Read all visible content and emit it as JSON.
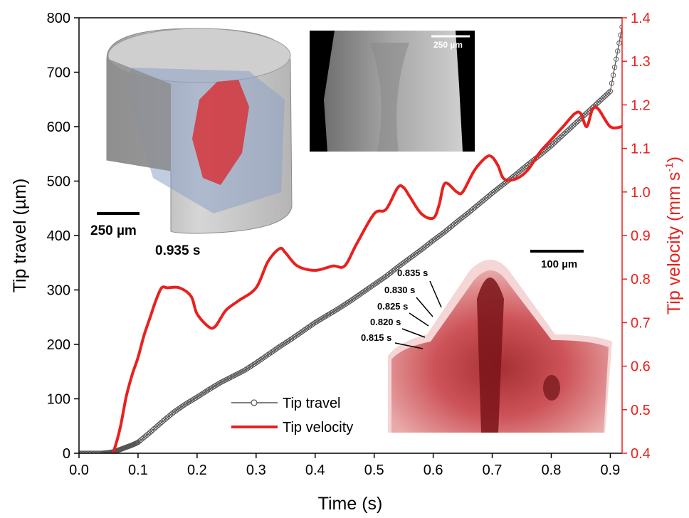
{
  "chart_data": {
    "type": "line",
    "xlabel": "Time (s)",
    "ylabel_left": "Tip travel (µm)",
    "ylabel_right_main": "Tip velocity (mm s",
    "ylabel_right_sup": "-1",
    "ylabel_right_tail": ")",
    "xlim": [
      0,
      0.92
    ],
    "ylim_left": [
      0,
      800
    ],
    "ylim_right": [
      0.4,
      1.4
    ],
    "x_ticks": [
      "0.0",
      "0.1",
      "0.2",
      "0.3",
      "0.4",
      "0.5",
      "0.6",
      "0.7",
      "0.8",
      "0.9"
    ],
    "y_left_ticks": [
      "0",
      "100",
      "200",
      "300",
      "400",
      "500",
      "600",
      "700",
      "800"
    ],
    "y_right_ticks": [
      "0.4",
      "0.5",
      "0.6",
      "0.7",
      "0.8",
      "0.9",
      "1.0",
      "1.1",
      "1.2",
      "1.3",
      "1.4"
    ],
    "legend_position": "bottom-center",
    "grid": false,
    "series": [
      {
        "name": "Tip travel",
        "axis": "left",
        "color": "#555555",
        "marker": "open-circle",
        "x": [
          0.0,
          0.02,
          0.04,
          0.05,
          0.06,
          0.07,
          0.08,
          0.09,
          0.1,
          0.12,
          0.14,
          0.16,
          0.18,
          0.2,
          0.22,
          0.24,
          0.26,
          0.28,
          0.3,
          0.32,
          0.34,
          0.36,
          0.38,
          0.4,
          0.42,
          0.44,
          0.46,
          0.48,
          0.5,
          0.52,
          0.54,
          0.56,
          0.58,
          0.6,
          0.62,
          0.64,
          0.66,
          0.68,
          0.7,
          0.72,
          0.74,
          0.76,
          0.78,
          0.8,
          0.82,
          0.84,
          0.86,
          0.88,
          0.9,
          0.92
        ],
        "y": [
          0,
          0,
          0,
          1,
          3,
          7,
          11,
          15,
          20,
          38,
          57,
          75,
          90,
          103,
          117,
          130,
          141,
          152,
          166,
          181,
          196,
          210,
          225,
          240,
          253,
          266,
          280,
          295,
          310,
          325,
          342,
          358,
          374,
          391,
          407,
          425,
          442,
          460,
          478,
          495,
          512,
          530,
          547,
          565,
          585,
          605,
          625,
          645,
          665,
          783
        ]
      },
      {
        "name": "Tip velocity",
        "axis": "right",
        "color": "#e8211e",
        "marker": "none",
        "x": [
          0.05,
          0.06,
          0.07,
          0.08,
          0.09,
          0.1,
          0.11,
          0.12,
          0.13,
          0.14,
          0.15,
          0.17,
          0.19,
          0.2,
          0.22,
          0.23,
          0.24,
          0.25,
          0.27,
          0.3,
          0.32,
          0.34,
          0.35,
          0.37,
          0.4,
          0.43,
          0.45,
          0.47,
          0.5,
          0.52,
          0.54,
          0.55,
          0.56,
          0.58,
          0.6,
          0.61,
          0.62,
          0.64,
          0.65,
          0.67,
          0.69,
          0.7,
          0.71,
          0.72,
          0.74,
          0.76,
          0.78,
          0.8,
          0.82,
          0.84,
          0.85,
          0.86,
          0.87,
          0.88,
          0.9,
          0.92
        ],
        "y": [
          0.38,
          0.41,
          0.46,
          0.53,
          0.58,
          0.62,
          0.67,
          0.71,
          0.75,
          0.78,
          0.78,
          0.78,
          0.76,
          0.72,
          0.69,
          0.69,
          0.71,
          0.73,
          0.75,
          0.78,
          0.84,
          0.87,
          0.86,
          0.83,
          0.82,
          0.83,
          0.83,
          0.88,
          0.95,
          0.96,
          1.01,
          1.01,
          0.99,
          0.95,
          0.94,
          0.97,
          1.02,
          1.0,
          1.0,
          1.05,
          1.08,
          1.08,
          1.06,
          1.03,
          1.03,
          1.05,
          1.09,
          1.12,
          1.15,
          1.18,
          1.18,
          1.15,
          1.19,
          1.19,
          1.15,
          1.15
        ]
      }
    ]
  },
  "insets": {
    "volume_render": {
      "scale_label": "250 µm",
      "time_label": "0.935 s"
    },
    "xray_slice": {
      "scale_label": "250 µm"
    },
    "tip_overlay": {
      "scale_label": "100 µm",
      "time_labels": [
        "0.835 s",
        "0.830 s",
        "0.825 s",
        "0.820 s",
        "0.815 s"
      ]
    }
  }
}
